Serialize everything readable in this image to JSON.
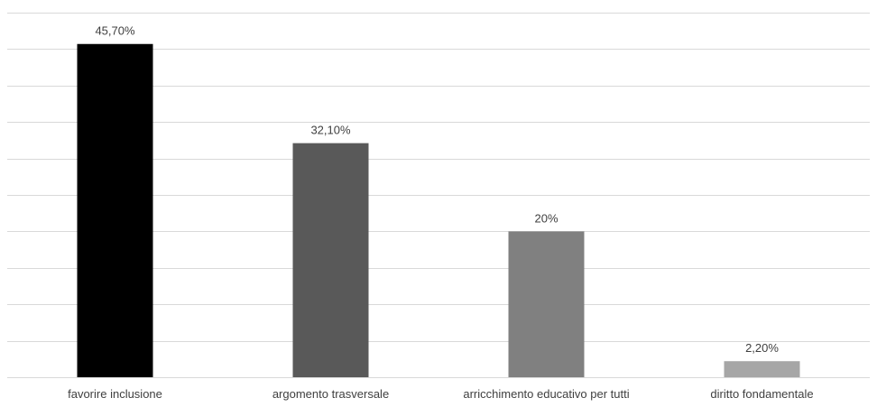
{
  "chart_data": {
    "type": "bar",
    "title": "",
    "xlabel": "",
    "ylabel": "",
    "categories": [
      "favorire inclusione",
      "argomento trasversale",
      "arricchimento educativo per tutti",
      "diritto fondamentale"
    ],
    "values": [
      45.7,
      32.1,
      20,
      2.2
    ],
    "data_labels": [
      "45,70%",
      "32,10%",
      "20%",
      "2,20%"
    ],
    "bar_colors": [
      "#000000",
      "#595959",
      "#808080",
      "#a6a6a6"
    ],
    "ylim": [
      0,
      50
    ],
    "grid": true,
    "legend": "none"
  }
}
